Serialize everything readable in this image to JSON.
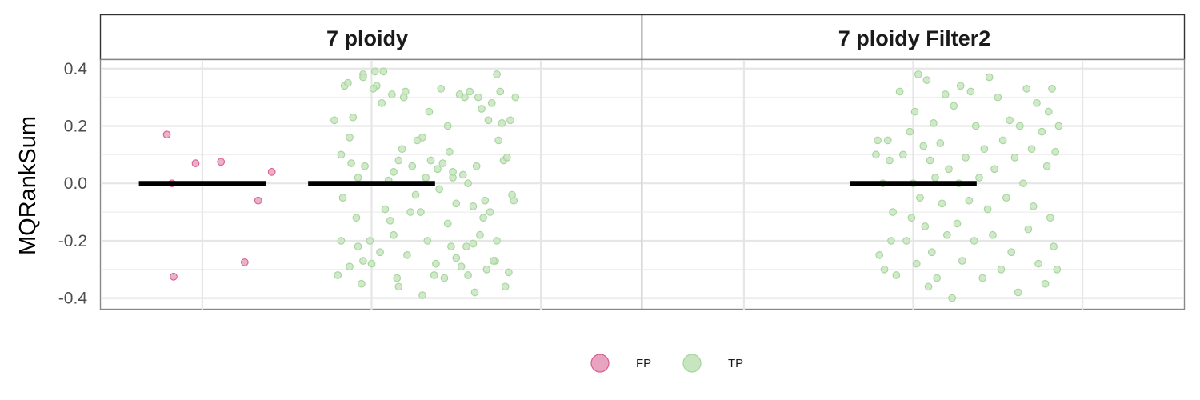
{
  "chart_data": {
    "type": "scatter",
    "ylabel": "MQRankSum",
    "xlabel": "",
    "ylim": [
      -0.44,
      0.43
    ],
    "yticks": [
      0.4,
      0.2,
      0.0,
      -0.2,
      -0.4
    ],
    "ytick_labels": [
      "0.4",
      "0.2",
      "0.0",
      "-0.2",
      "-0.4"
    ],
    "grid": true,
    "legend_position": "bottom",
    "colors": {
      "FP": "#e7a3c0",
      "TP": "#c7e5c0",
      "FP_edge": "#d75f92",
      "TP_edge": "#a6d49d",
      "median": "#000000"
    },
    "legend": [
      {
        "name": "FP"
      },
      {
        "name": "TP"
      }
    ],
    "facets": [
      {
        "title": "7 ploidy",
        "medians": [
          {
            "group": "FP",
            "y": 0.0
          },
          {
            "group": "TP",
            "y": 0.0
          }
        ],
        "series": [
          {
            "group": "FP",
            "points": [
              [
                0.79,
                0.17
              ],
              [
                0.82,
                0.0
              ],
              [
                0.96,
                0.07
              ],
              [
                1.11,
                0.075
              ],
              [
                1.25,
                -0.275
              ],
              [
                1.33,
                -0.06
              ],
              [
                1.41,
                0.04
              ],
              [
                0.83,
                -0.325
              ]
            ]
          },
          {
            "group": "TP",
            "points": [
              [
                1.78,
                0.22
              ],
              [
                1.95,
                0.38
              ],
              [
                2.07,
                0.39
              ],
              [
                2.12,
                0.31
              ],
              [
                2.18,
                0.12
              ],
              [
                2.3,
                0.16
              ],
              [
                2.32,
                0.02
              ],
              [
                2.41,
                0.33
              ],
              [
                2.45,
                0.2
              ],
              [
                2.55,
                0.3
              ],
              [
                2.63,
                0.3
              ],
              [
                2.78,
                0.08
              ],
              [
                2.7,
                -0.1
              ],
              [
                2.6,
                -0.08
              ],
              [
                2.5,
                -0.26
              ],
              [
                2.37,
                -0.32
              ],
              [
                2.16,
                -0.36
              ],
              [
                2.05,
                -0.24
              ],
              [
                1.95,
                -0.27
              ],
              [
                1.8,
                -0.32
              ],
              [
                1.92,
                0.02
              ],
              [
                1.96,
                0.06
              ],
              [
                1.82,
                0.1
              ],
              [
                1.95,
                0.37
              ],
              [
                2.03,
                0.34
              ],
              [
                2.02,
                0.39
              ],
              [
                1.89,
                0.23
              ],
              [
                2.1,
                0.01
              ],
              [
                2.16,
                0.08
              ],
              [
                2.2,
                0.32
              ],
              [
                2.27,
                0.15
              ],
              [
                2.35,
                0.08
              ],
              [
                2.4,
                -0.02
              ],
              [
                2.48,
                0.02
              ],
              [
                2.57,
                0.0
              ],
              [
                2.6,
                -0.21
              ],
              [
                2.68,
                -0.3
              ],
              [
                2.74,
                -0.2
              ],
              [
                2.75,
                0.15
              ],
              [
                2.8,
                0.09
              ],
              [
                2.82,
                0.22
              ],
              [
                2.84,
                -0.06
              ],
              [
                2.81,
                -0.31
              ],
              [
                2.73,
                -0.27
              ],
              [
                2.64,
                -0.18
              ],
              [
                2.57,
                -0.32
              ],
              [
                2.48,
                0.04
              ],
              [
                2.45,
                -0.14
              ],
              [
                2.33,
                -0.2
              ],
              [
                2.26,
                -0.04
              ],
              [
                2.21,
                -0.25
              ],
              [
                2.13,
                -0.18
              ],
              [
                2.08,
                -0.09
              ],
              [
                1.99,
                -0.2
              ],
              [
                1.87,
                -0.29
              ],
              [
                1.82,
                -0.2
              ],
              [
                1.83,
                -0.05
              ],
              [
                1.84,
                0.34
              ],
              [
                1.86,
                0.35
              ],
              [
                1.87,
                0.16
              ],
              [
                1.88,
                0.07
              ],
              [
                1.91,
                -0.12
              ],
              [
                1.92,
                -0.22
              ],
              [
                1.94,
                -0.35
              ],
              [
                2.0,
                -0.28
              ],
              [
                2.01,
                0.33
              ],
              [
                2.06,
                0.28
              ],
              [
                2.11,
                -0.13
              ],
              [
                2.13,
                0.04
              ],
              [
                2.15,
                -0.33
              ],
              [
                2.19,
                0.3
              ],
              [
                2.23,
                -0.1
              ],
              [
                2.24,
                0.06
              ],
              [
                2.29,
                -0.1
              ],
              [
                2.3,
                -0.39
              ],
              [
                2.34,
                0.25
              ],
              [
                2.38,
                -0.28
              ],
              [
                2.39,
                0.05
              ],
              [
                2.42,
                0.07
              ],
              [
                2.43,
                -0.33
              ],
              [
                2.46,
                0.11
              ],
              [
                2.47,
                -0.22
              ],
              [
                2.5,
                -0.07
              ],
              [
                2.52,
                0.31
              ],
              [
                2.53,
                -0.29
              ],
              [
                2.54,
                0.03
              ],
              [
                2.56,
                -0.22
              ],
              [
                2.58,
                0.32
              ],
              [
                2.61,
                -0.38
              ],
              [
                2.62,
                0.06
              ],
              [
                2.65,
                0.26
              ],
              [
                2.66,
                -0.12
              ],
              [
                2.67,
                -0.06
              ],
              [
                2.69,
                0.22
              ],
              [
                2.71,
                0.28
              ],
              [
                2.72,
                -0.27
              ],
              [
                2.74,
                0.38
              ],
              [
                2.76,
                0.32
              ],
              [
                2.77,
                0.21
              ],
              [
                2.79,
                -0.36
              ],
              [
                2.83,
                -0.04
              ],
              [
                2.85,
                0.3
              ]
            ]
          }
        ]
      },
      {
        "title": "7 ploidy Filter2",
        "medians": [
          {
            "group": "TP",
            "y": 0.0
          }
        ],
        "series": [
          {
            "group": "TP",
            "points": [
              [
                1.78,
                0.1
              ],
              [
                1.79,
                0.15
              ],
              [
                1.8,
                -0.25
              ],
              [
                1.82,
                0.0
              ],
              [
                1.83,
                -0.3
              ],
              [
                1.85,
                0.15
              ],
              [
                1.86,
                0.08
              ],
              [
                1.87,
                -0.2
              ],
              [
                1.88,
                -0.1
              ],
              [
                1.9,
                -0.32
              ],
              [
                1.92,
                0.32
              ],
              [
                1.94,
                0.1
              ],
              [
                1.96,
                -0.2
              ],
              [
                1.98,
                0.18
              ],
              [
                1.99,
                -0.12
              ],
              [
                2.0,
                0.0
              ],
              [
                2.01,
                0.25
              ],
              [
                2.02,
                -0.28
              ],
              [
                2.03,
                0.38
              ],
              [
                2.04,
                -0.05
              ],
              [
                2.06,
                0.13
              ],
              [
                2.07,
                -0.15
              ],
              [
                2.08,
                0.36
              ],
              [
                2.09,
                -0.36
              ],
              [
                2.1,
                0.08
              ],
              [
                2.11,
                -0.24
              ],
              [
                2.12,
                0.21
              ],
              [
                2.13,
                0.02
              ],
              [
                2.14,
                -0.33
              ],
              [
                2.16,
                0.14
              ],
              [
                2.17,
                -0.07
              ],
              [
                2.19,
                0.31
              ],
              [
                2.2,
                -0.18
              ],
              [
                2.21,
                0.05
              ],
              [
                2.23,
                -0.4
              ],
              [
                2.24,
                0.27
              ],
              [
                2.26,
                -0.14
              ],
              [
                2.27,
                0.0
              ],
              [
                2.28,
                0.34
              ],
              [
                2.29,
                -0.27
              ],
              [
                2.31,
                0.09
              ],
              [
                2.33,
                -0.06
              ],
              [
                2.34,
                0.32
              ],
              [
                2.36,
                -0.2
              ],
              [
                2.37,
                0.2
              ],
              [
                2.39,
                0.02
              ],
              [
                2.41,
                -0.33
              ],
              [
                2.42,
                0.12
              ],
              [
                2.44,
                -0.09
              ],
              [
                2.45,
                0.37
              ],
              [
                2.47,
                -0.18
              ],
              [
                2.48,
                0.05
              ],
              [
                2.5,
                0.3
              ],
              [
                2.52,
                -0.3
              ],
              [
                2.53,
                0.15
              ],
              [
                2.55,
                -0.05
              ],
              [
                2.57,
                0.22
              ],
              [
                2.58,
                -0.24
              ],
              [
                2.6,
                0.09
              ],
              [
                2.62,
                -0.38
              ],
              [
                2.63,
                0.2
              ],
              [
                2.65,
                0.0
              ],
              [
                2.67,
                0.33
              ],
              [
                2.68,
                -0.16
              ],
              [
                2.7,
                0.12
              ],
              [
                2.71,
                -0.08
              ],
              [
                2.73,
                0.28
              ],
              [
                2.74,
                -0.28
              ],
              [
                2.76,
                0.18
              ],
              [
                2.78,
                -0.35
              ],
              [
                2.79,
                0.06
              ],
              [
                2.8,
                0.25
              ],
              [
                2.81,
                -0.12
              ],
              [
                2.82,
                0.33
              ],
              [
                2.83,
                -0.22
              ],
              [
                2.84,
                0.11
              ],
              [
                2.85,
                -0.3
              ],
              [
                2.86,
                0.2
              ]
            ]
          }
        ]
      }
    ]
  }
}
